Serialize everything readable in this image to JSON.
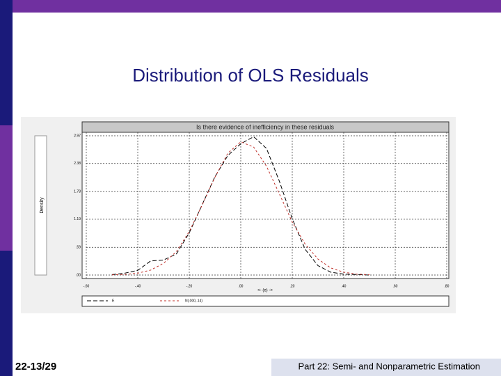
{
  "slide_title": "Distribution of OLS Residuals",
  "footer": {
    "number": "22-13/29",
    "course": "Part 22: Semi- and Nonparametric Estimation"
  },
  "chart_data": {
    "type": "line",
    "title": "Is there evidence of inefficiency in these residuals",
    "y_label": "Density",
    "x_label": "<- (e) ->",
    "x": [
      -0.5,
      -0.45,
      -0.4,
      -0.35,
      -0.3,
      -0.25,
      -0.2,
      -0.15,
      -0.1,
      -0.05,
      0,
      0.05,
      0.1,
      0.15,
      0.2,
      0.25,
      0.3,
      0.35,
      0.4,
      0.45,
      0.5
    ],
    "series": [
      {
        "name": "E",
        "color": "#000000",
        "dash": "6,3",
        "values": [
          0.01,
          0.04,
          0.1,
          0.3,
          0.32,
          0.45,
          0.9,
          1.5,
          2.1,
          2.55,
          2.8,
          2.95,
          2.7,
          2.0,
          1.2,
          0.55,
          0.2,
          0.06,
          0.02,
          0.01,
          0
        ]
      },
      {
        "name": "N(.000,.14)",
        "color": "#c0302a",
        "dash": "3,3",
        "values": [
          0.004,
          0.013,
          0.04,
          0.105,
          0.25,
          0.5,
          0.93,
          1.49,
          2.09,
          2.6,
          2.84,
          2.73,
          2.32,
          1.73,
          1.13,
          0.66,
          0.34,
          0.15,
          0.06,
          0.02,
          0.006
        ]
      }
    ],
    "xlim": [
      -0.6,
      0.8
    ],
    "xticks": [
      {
        "value": -0.6,
        "label": "-.60"
      },
      {
        "value": -0.4,
        "label": "-.40"
      },
      {
        "value": -0.2,
        "label": "-.20"
      },
      {
        "value": 0,
        "label": ".00"
      },
      {
        "value": 0.2,
        "label": ".20"
      },
      {
        "value": 0.4,
        "label": ".40"
      },
      {
        "value": 0.6,
        "label": ".60"
      },
      {
        "value": 0.8,
        "label": ".80"
      }
    ],
    "ylim": [
      0,
      2.97
    ],
    "yticks": [
      {
        "value": 0,
        "label": ".00"
      },
      {
        "value": 0.59,
        "label": ".59"
      },
      {
        "value": 1.19,
        "label": "1.19"
      },
      {
        "value": 1.78,
        "label": "1.78"
      },
      {
        "value": 2.38,
        "label": "2.38"
      },
      {
        "value": 2.97,
        "label": "2.97"
      }
    ],
    "grid": true
  }
}
